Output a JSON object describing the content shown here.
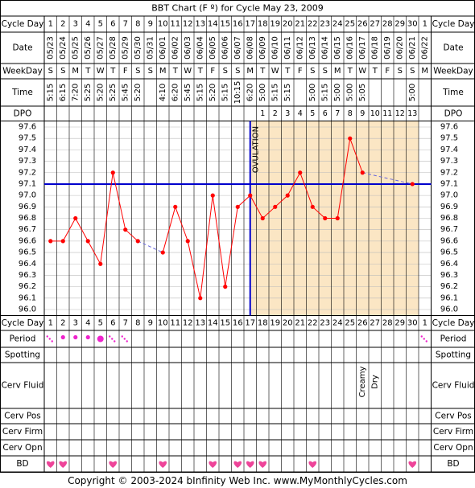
{
  "title": "BBT Chart (F º) for Cycle May 23, 2009",
  "copyright": "Copyright © 2003-2024 bInfinity Web Inc.    www.MyMonthlyCycles.com",
  "labels": {
    "cycle_day": "Cycle Day",
    "date": "Date",
    "weekday": "WeekDay",
    "time": "Time",
    "dpo": "DPO",
    "period": "Period",
    "spotting": "Spotting",
    "cerv_fluid": "Cerv Fluid",
    "cerv_pos": "Cerv Pos",
    "cerv_firm": "Cerv Firm",
    "cerv_opn": "Cerv Opn",
    "bd": "BD",
    "ovulation": "OVULATION"
  },
  "days": [
    "1",
    "2",
    "3",
    "4",
    "5",
    "6",
    "7",
    "8",
    "9",
    "10",
    "11",
    "12",
    "13",
    "14",
    "15",
    "16",
    "17",
    "18",
    "19",
    "20",
    "21",
    "22",
    "23",
    "24",
    "25",
    "26",
    "27",
    "28",
    "29",
    "30"
  ],
  "next_day": "1",
  "dates": [
    "05/23",
    "05/24",
    "05/25",
    "05/26",
    "05/27",
    "05/28",
    "05/29",
    "05/30",
    "05/31",
    "06/01",
    "06/02",
    "06/03",
    "06/04",
    "06/05",
    "06/06",
    "06/07",
    "06/08",
    "06/09",
    "06/10",
    "06/11",
    "06/12",
    "06/13",
    "06/14",
    "06/15",
    "06/16",
    "06/17",
    "06/18",
    "06/19",
    "06/20",
    "06/21"
  ],
  "next_date": "06/22",
  "weekdays": [
    "S",
    "S",
    "M",
    "T",
    "W",
    "T",
    "F",
    "S",
    "S",
    "M",
    "T",
    "W",
    "T",
    "F",
    "S",
    "S",
    "M",
    "T",
    "W",
    "T",
    "F",
    "S",
    "S",
    "M",
    "T",
    "W",
    "T",
    "F",
    "S",
    "S"
  ],
  "next_weekday": "M",
  "times": [
    "5:15",
    "6:15",
    "7:20",
    "5:25",
    "5:20",
    "5:25",
    "5:45",
    "5:20",
    "",
    "4:10",
    "6:20",
    "5:45",
    "5:15",
    "5:20",
    "5:15",
    "10:15",
    "6:20",
    "5:00",
    "5:15",
    "5:15",
    "",
    "5:00",
    "5:15",
    "5:00",
    "5:00",
    "5:05",
    "",
    "",
    "",
    "5:00"
  ],
  "dpo": [
    "",
    "",
    "",
    "",
    "",
    "",
    "",
    "",
    "",
    "",
    "",
    "",
    "",
    "",
    "",
    "",
    "",
    "1",
    "2",
    "3",
    "4",
    "5",
    "6",
    "7",
    "8",
    "9",
    "10",
    "11",
    "12",
    "13"
  ],
  "cerv_fluid": [
    "",
    "",
    "",
    "",
    "",
    "",
    "",
    "",
    "",
    "",
    "",
    "",
    "",
    "",
    "",
    "",
    "",
    "",
    "",
    "",
    "",
    "",
    "",
    "",
    "",
    "Creamy",
    "Dry",
    "",
    "",
    ""
  ],
  "chart_data": {
    "type": "line",
    "title": "BBT Chart (F º) for Cycle May 23, 2009",
    "x": [
      1,
      2,
      3,
      4,
      5,
      6,
      7,
      8,
      10,
      11,
      12,
      13,
      14,
      15,
      16,
      17,
      18,
      19,
      20,
      21,
      22,
      23,
      24,
      25,
      26,
      30
    ],
    "y": [
      96.6,
      96.6,
      96.8,
      96.6,
      96.4,
      97.2,
      96.7,
      96.6,
      96.5,
      96.9,
      96.6,
      96.1,
      97.0,
      96.2,
      96.9,
      97.0,
      96.8,
      96.9,
      97.0,
      97.2,
      96.9,
      96.8,
      96.8,
      97.5,
      97.2,
      97.1
    ],
    "dashed_segments": [
      [
        8,
        10
      ],
      [
        26,
        30
      ]
    ],
    "ylim": [
      96.0,
      97.6
    ],
    "yticks": [
      "97.6",
      "97.5",
      "97.4",
      "97.3",
      "97.2",
      "97.1",
      "97.0",
      "96.9",
      "96.8",
      "96.7",
      "96.6",
      "96.5",
      "96.4",
      "96.3",
      "96.2",
      "96.1",
      "96.0"
    ],
    "coverline": 97.1,
    "ovulation_day": 17,
    "luteal_shading": [
      17,
      30
    ]
  },
  "period": [
    {
      "day": 1,
      "kind": "spotting"
    },
    {
      "day": 2,
      "kind": "light"
    },
    {
      "day": 3,
      "kind": "light"
    },
    {
      "day": 4,
      "kind": "light"
    },
    {
      "day": 5,
      "kind": "heavy"
    },
    {
      "day": 6,
      "kind": "spotting"
    },
    {
      "day": 7,
      "kind": "spotting"
    },
    {
      "day": 31,
      "kind": "spotting"
    }
  ],
  "bd_days": [
    1,
    2,
    6,
    10,
    14,
    16,
    17,
    18,
    22,
    30
  ],
  "colors": {
    "line": "#ff0000",
    "coverline": "#0000cc",
    "luteal_fill": "#fbe6c4",
    "grid": "#000000",
    "period": "#ee22cc",
    "heart": "#ee4499"
  }
}
